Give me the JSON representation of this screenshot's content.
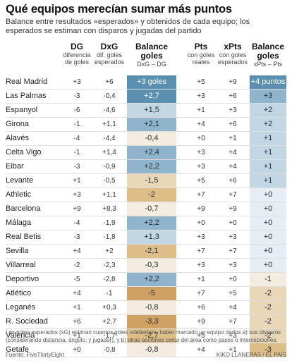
{
  "title": "Qué equipos merecían sumar más puntos",
  "subtitle": "Balance entre resultados «esperados» y obtenidos de cada equipo; los esperados se estiman con disparos y jugadas del partido",
  "headers": [
    {
      "key": "dg",
      "label": "DG",
      "sub": [
        "diferencia",
        "de goles"
      ]
    },
    {
      "key": "dxg",
      "label": "DxG",
      "sub": [
        "dif. goles",
        "esperados"
      ]
    },
    {
      "key": "bal_g",
      "label": [
        "Balance",
        "goles"
      ],
      "sub": [
        "DxG – DG"
      ]
    },
    {
      "key": "pts",
      "label": "Pts",
      "sub": [
        "con goles",
        "reales"
      ]
    },
    {
      "key": "xpts",
      "label": "xPts",
      "sub": [
        "con goles",
        "esperados"
      ]
    },
    {
      "key": "bal_p",
      "label": [
        "Balance",
        "goles"
      ],
      "sub": [
        "xPts – Pts"
      ]
    }
  ],
  "rows": [
    {
      "team": "Real Madrid",
      "dg": "+3",
      "dxg": "+6",
      "bal_g": "+3 goles",
      "pts": "+5",
      "xpts": "+9",
      "bal_p": "+4 puntos"
    },
    {
      "team": "Las Palmas",
      "dg": "-3",
      "dxg": "-0,4",
      "bal_g": "+2,7",
      "pts": "+3",
      "xpts": "+6",
      "bal_p": "+3"
    },
    {
      "team": "Espanyol",
      "dg": "-6",
      "dxg": "-4,6",
      "bal_g": "+1,5",
      "pts": "+1",
      "xpts": "+3",
      "bal_p": "+2"
    },
    {
      "team": "Girona",
      "dg": "-1",
      "dxg": "+1,1",
      "bal_g": "+2,1",
      "pts": "+4",
      "xpts": "+6",
      "bal_p": "+2"
    },
    {
      "team": "Alavés",
      "dg": "-4",
      "dxg": "-4,4",
      "bal_g": "-0,4",
      "pts": "+0",
      "xpts": "+1",
      "bal_p": "+1"
    },
    {
      "team": "Celta Vigo",
      "dg": "-1",
      "dxg": "+1,4",
      "bal_g": "+2,4",
      "pts": "+3",
      "xpts": "+4",
      "bal_p": "+1"
    },
    {
      "team": "Eibar",
      "dg": "-3",
      "dxg": "-0,9",
      "bal_g": "+2,2",
      "pts": "+3",
      "xpts": "+4",
      "bal_p": "+1"
    },
    {
      "team": "Levante",
      "dg": "+1",
      "dxg": "-0,5",
      "bal_g": "-1,5",
      "pts": "+5",
      "xpts": "+6",
      "bal_p": "+1"
    },
    {
      "team": "Athletic",
      "dg": "+3",
      "dxg": "+1,1",
      "bal_g": "-2",
      "pts": "+7",
      "xpts": "+7",
      "bal_p": "+0"
    },
    {
      "team": "Barcelona",
      "dg": "+9",
      "dxg": "+8,3",
      "bal_g": "-0,7",
      "pts": "+9",
      "xpts": "+9",
      "bal_p": "+0"
    },
    {
      "team": "Málaga",
      "dg": "-4",
      "dxg": "-1,9",
      "bal_g": "+2,2",
      "pts": "+0",
      "xpts": "+0",
      "bal_p": "+0"
    },
    {
      "team": "Real Betis",
      "dg": "-3",
      "dxg": "-1,8",
      "bal_g": "+1,3",
      "pts": "+3",
      "xpts": "+3",
      "bal_p": "+0"
    },
    {
      "team": "Sevilla",
      "dg": "+4",
      "dxg": "+2",
      "bal_g": "-2,1",
      "pts": "+7",
      "xpts": "+7",
      "bal_p": "+0"
    },
    {
      "team": "Villarreal",
      "dg": "-2",
      "dxg": "-2,3",
      "bal_g": "-0,3",
      "pts": "+3",
      "xpts": "+3",
      "bal_p": "+0"
    },
    {
      "team": "Deportivo",
      "dg": "-5",
      "dxg": "-2,8",
      "bal_g": "+2,2",
      "pts": "+1",
      "xpts": "+0",
      "bal_p": "-1"
    },
    {
      "team": "Atlético",
      "dg": "+4",
      "dxg": "-1",
      "bal_g": "-5",
      "pts": "+7",
      "xpts": "+5",
      "bal_p": "-2"
    },
    {
      "team": "Leganés",
      "dg": "+1",
      "dxg": "+0,3",
      "bal_g": "-0,8",
      "pts": "+6",
      "xpts": "+4",
      "bal_p": "-2"
    },
    {
      "team": "R. Sociedad",
      "dg": "+6",
      "dxg": "+2,7",
      "bal_g": "-3,3",
      "pts": "+9",
      "xpts": "+7",
      "bal_p": "-2"
    },
    {
      "team": "Valencia",
      "dg": "+1",
      "dxg": "-1,7",
      "bal_g": "-2,7",
      "pts": "+5",
      "xpts": "+3",
      "bal_p": "-2"
    },
    {
      "team": "Getafe",
      "dg": "+0",
      "dxg": "-0,8",
      "bal_g": "-0,8",
      "pts": "+4",
      "xpts": "+1",
      "bal_p": "-3"
    }
  ],
  "colors": {
    "pos_strong": "#5b8fb0",
    "pos_mid": "#8fb4cc",
    "pos_light": "#c3d6e3",
    "pos_pale": "#e6eef4",
    "neg_pale": "#f4ecdf",
    "neg_light": "#ead7b7",
    "neg_mid": "#ddbd88",
    "neg_strong": "#cfa263"
  },
  "note": "Los goles esperados (xG) estiman cuantos goles «deberían» haber marcado un equipo dados a) sus disparos (considerando distancia, ángulo, y jugador), y b) otras acciones cerca del área como pases o intercepciones.",
  "source": "Fuente: FiveThirtyEight",
  "credit": "KIKO LLANERAS / EL PAÍS"
}
